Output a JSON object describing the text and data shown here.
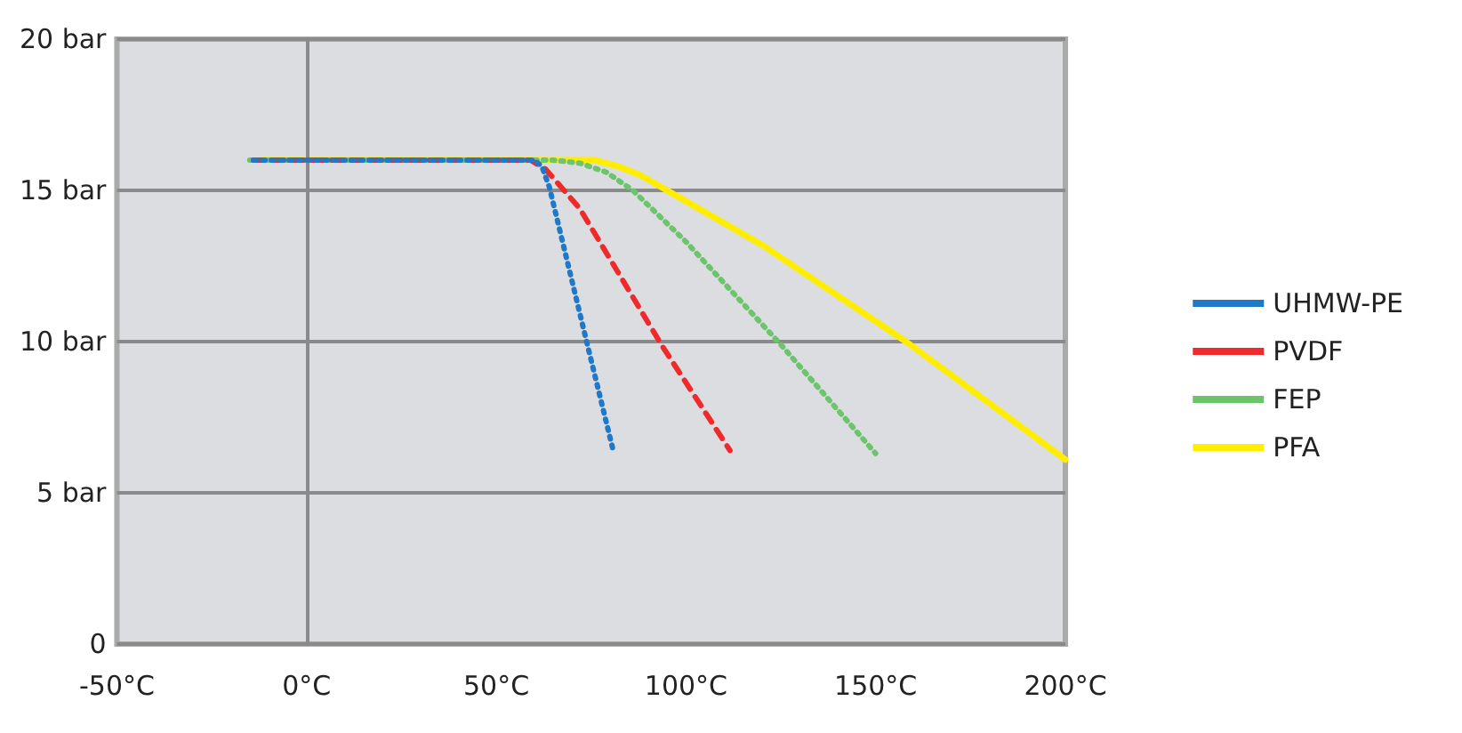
{
  "chart_data": {
    "type": "line",
    "xlim": [
      -50,
      200
    ],
    "ylim": [
      0,
      20
    ],
    "xticks": [
      {
        "value": -50,
        "label": "-50°C"
      },
      {
        "value": 0,
        "label": "0°C"
      },
      {
        "value": 50,
        "label": "50°C"
      },
      {
        "value": 100,
        "label": "100°C"
      },
      {
        "value": 150,
        "label": "150°C"
      },
      {
        "value": 200,
        "label": "200°C"
      }
    ],
    "yticks": [
      {
        "value": 0,
        "label": "0"
      },
      {
        "value": 5,
        "label": "5 bar"
      },
      {
        "value": 10,
        "label": "10 bar"
      },
      {
        "value": 15,
        "label": "15 bar"
      },
      {
        "value": 20,
        "label": "20 bar"
      }
    ],
    "grid": "y",
    "legend": "right",
    "marker": "none",
    "ref_lines": [
      {
        "axis": "x",
        "value": 0,
        "color": "#8a8a8a",
        "line_style": "solid"
      }
    ],
    "series": [
      {
        "name": "UHMW-PE",
        "color": "#1f78c8",
        "line_style": "dotted",
        "x": [
          -14,
          60,
          62,
          64,
          74,
          81
        ],
        "values": [
          16,
          16,
          15.8,
          15.1,
          9.9,
          6.3
        ]
      },
      {
        "name": "PVDF",
        "color": "#ee2a2a",
        "line_style": "dashed",
        "x": [
          -14,
          59,
          63,
          72,
          93.5,
          111.6
        ],
        "values": [
          16,
          16,
          15.7,
          14.4,
          9.9,
          6.4
        ]
      },
      {
        "name": "FEP",
        "color": "#6cc46c",
        "line_style": "dotted",
        "x": [
          -15,
          65,
          72,
          79,
          86,
          100,
          125,
          150
        ],
        "values": [
          16,
          16,
          15.9,
          15.6,
          15,
          13.3,
          9.9,
          6.3
        ]
      },
      {
        "name": "PFA",
        "color": "#ffee00",
        "line_style": "solid",
        "x": [
          -12,
          76,
          82,
          88,
          95,
          120,
          158,
          200
        ],
        "values": [
          16,
          16,
          15.8,
          15.5,
          15,
          13.2,
          10,
          6.1
        ]
      }
    ]
  }
}
